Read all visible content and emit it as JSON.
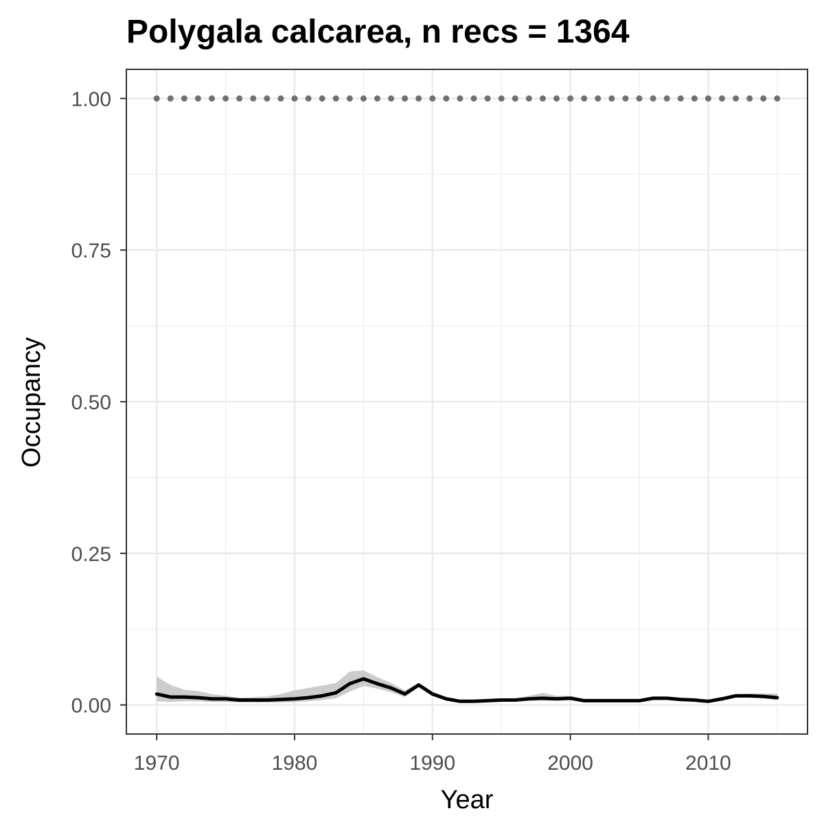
{
  "chart_data": {
    "type": "line",
    "title": "Polygala calcarea, n recs = 1364",
    "xlabel": "Year",
    "ylabel": "Occupancy",
    "xlim": [
      1967.8,
      2017.2
    ],
    "ylim": [
      -0.048,
      1.048
    ],
    "x_ticks": [
      1970,
      1980,
      1990,
      2000,
      2010
    ],
    "x_tick_labels": [
      "1970",
      "1980",
      "1990",
      "2000",
      "2010"
    ],
    "y_ticks": [
      0,
      0.25,
      0.5,
      0.75,
      1.0
    ],
    "y_tick_labels": [
      "0.00",
      "0.25",
      "0.50",
      "0.75",
      "1.00"
    ],
    "grid": true,
    "legend": "none",
    "colors": {
      "line": "#000000",
      "ribbon": "#cccccc",
      "reference": "#707070",
      "grid": "#ebebeb",
      "panel_border": "#333333"
    },
    "series": [
      {
        "type": "line",
        "x": [
          1970,
          1971,
          1972,
          1973,
          1974,
          1975,
          1976,
          1977,
          1978,
          1979,
          1980,
          1981,
          1982,
          1983,
          1984,
          1985,
          1986,
          1987,
          1988,
          1989,
          1990,
          1991,
          1992,
          1993,
          1994,
          1995,
          1996,
          1997,
          1998,
          1999,
          2000,
          2001,
          2002,
          2003,
          2004,
          2005,
          2006,
          2007,
          2008,
          2009,
          2010,
          2011,
          2012,
          2013,
          2014,
          2015
        ],
        "values": [
          0.018,
          0.013,
          0.013,
          0.012,
          0.01,
          0.01,
          0.008,
          0.008,
          0.008,
          0.009,
          0.01,
          0.012,
          0.015,
          0.02,
          0.035,
          0.043,
          0.035,
          0.028,
          0.018,
          0.033,
          0.018,
          0.01,
          0.006,
          0.006,
          0.007,
          0.008,
          0.008,
          0.01,
          0.011,
          0.01,
          0.011,
          0.007,
          0.007,
          0.007,
          0.007,
          0.007,
          0.011,
          0.011,
          0.009,
          0.008,
          0.006,
          0.01,
          0.015,
          0.015,
          0.014,
          0.012
        ]
      },
      {
        "type": "ribbon",
        "x": [
          1970,
          1971,
          1972,
          1973,
          1974,
          1975,
          1976,
          1977,
          1978,
          1979,
          1980,
          1981,
          1982,
          1983,
          1984,
          1985,
          1986,
          1987,
          1988,
          1989,
          1990,
          1991,
          1992,
          1993,
          1994,
          1995,
          1996,
          1997,
          1998,
          1999,
          2000,
          2001,
          2002,
          2003,
          2004,
          2005,
          2006,
          2007,
          2008,
          2009,
          2010,
          2011,
          2012,
          2013,
          2014,
          2015
        ],
        "upper": [
          0.047,
          0.033,
          0.025,
          0.023,
          0.018,
          0.015,
          0.012,
          0.013,
          0.014,
          0.018,
          0.024,
          0.028,
          0.032,
          0.036,
          0.055,
          0.057,
          0.046,
          0.036,
          0.024,
          0.036,
          0.022,
          0.013,
          0.008,
          0.008,
          0.009,
          0.01,
          0.011,
          0.015,
          0.02,
          0.015,
          0.015,
          0.01,
          0.009,
          0.009,
          0.009,
          0.009,
          0.013,
          0.013,
          0.011,
          0.01,
          0.008,
          0.013,
          0.018,
          0.019,
          0.019,
          0.019
        ],
        "lower": [
          0.006,
          0.005,
          0.006,
          0.006,
          0.005,
          0.005,
          0.004,
          0.004,
          0.004,
          0.004,
          0.005,
          0.006,
          0.008,
          0.011,
          0.022,
          0.031,
          0.027,
          0.021,
          0.013,
          0.029,
          0.015,
          0.008,
          0.004,
          0.004,
          0.005,
          0.006,
          0.006,
          0.007,
          0.007,
          0.007,
          0.008,
          0.005,
          0.005,
          0.005,
          0.005,
          0.005,
          0.009,
          0.009,
          0.007,
          0.006,
          0.004,
          0.008,
          0.012,
          0.012,
          0.011,
          0.008
        ]
      },
      {
        "type": "dotted-reference",
        "x": [
          1970,
          1971,
          1972,
          1973,
          1974,
          1975,
          1976,
          1977,
          1978,
          1979,
          1980,
          1981,
          1982,
          1983,
          1984,
          1985,
          1986,
          1987,
          1988,
          1989,
          1990,
          1991,
          1992,
          1993,
          1994,
          1995,
          1996,
          1997,
          1998,
          1999,
          2000,
          2001,
          2002,
          2003,
          2004,
          2005,
          2006,
          2007,
          2008,
          2009,
          2010,
          2011,
          2012,
          2013,
          2014,
          2015
        ],
        "values": [
          1,
          1,
          1,
          1,
          1,
          1,
          1,
          1,
          1,
          1,
          1,
          1,
          1,
          1,
          1,
          1,
          1,
          1,
          1,
          1,
          1,
          1,
          1,
          1,
          1,
          1,
          1,
          1,
          1,
          1,
          1,
          1,
          1,
          1,
          1,
          1,
          1,
          1,
          1,
          1,
          1,
          1,
          1,
          1,
          1,
          1
        ]
      }
    ]
  }
}
